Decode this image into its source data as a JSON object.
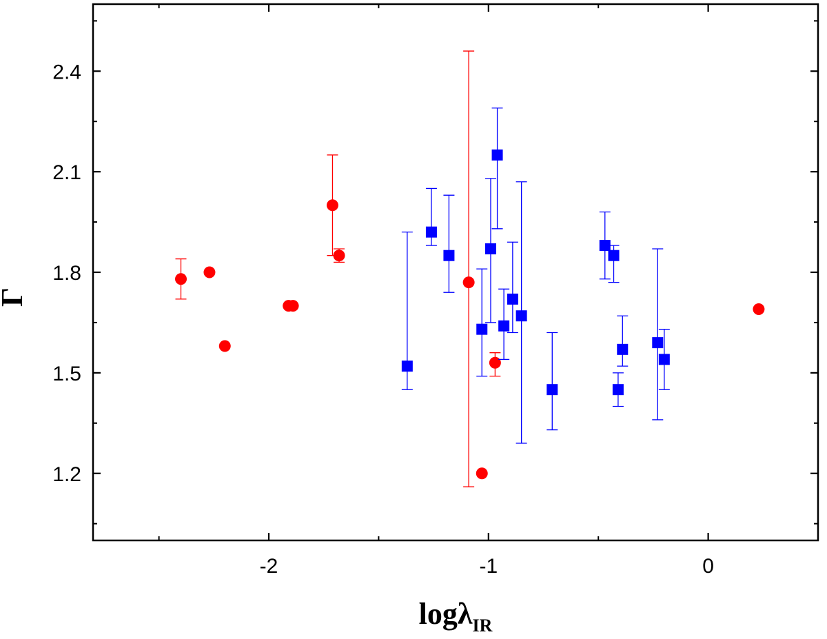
{
  "chart_data": {
    "type": "scatter",
    "title": "",
    "xlabel": {
      "main": "logλ",
      "sub": "IR"
    },
    "ylabel": "Γ",
    "xlim": [
      -2.8,
      0.5
    ],
    "ylim": [
      1.0,
      2.6
    ],
    "x_major_ticks": [
      -2,
      -1,
      0
    ],
    "x_tick_labels": [
      "-2",
      "-1",
      "0"
    ],
    "x_minor_ticks": [
      -2.5,
      -1.5,
      -0.5
    ],
    "y_major_ticks": [
      1.2,
      1.5,
      1.8,
      2.1,
      2.4
    ],
    "y_tick_labels": [
      "1.2",
      "1.5",
      "1.8",
      "2.1",
      "2.4"
    ],
    "y_minor_ticks": [
      1.05,
      1.35,
      1.65,
      1.95,
      2.25,
      2.55
    ],
    "grid": false,
    "series": [
      {
        "name": "circles",
        "marker": "circle",
        "color": "#ff0000",
        "points": [
          {
            "x": -2.4,
            "y": 1.78,
            "lo": 1.72,
            "hi": 1.84
          },
          {
            "x": -2.27,
            "y": 1.8
          },
          {
            "x": -2.2,
            "y": 1.58
          },
          {
            "x": -1.91,
            "y": 1.7
          },
          {
            "x": -1.89,
            "y": 1.7
          },
          {
            "x": -1.71,
            "y": 2.0,
            "lo": 1.85,
            "hi": 2.15
          },
          {
            "x": -1.68,
            "y": 1.85,
            "lo": 1.83,
            "hi": 1.87
          },
          {
            "x": -1.09,
            "y": 1.77,
            "lo": 1.16,
            "hi": 2.46
          },
          {
            "x": -1.03,
            "y": 1.2
          },
          {
            "x": -0.97,
            "y": 1.53,
            "lo": 1.49,
            "hi": 1.56
          },
          {
            "x": 0.23,
            "y": 1.69
          }
        ]
      },
      {
        "name": "squares",
        "marker": "square",
        "color": "#0000ff",
        "points": [
          {
            "x": -1.37,
            "y": 1.52,
            "lo": 1.45,
            "hi": 1.92
          },
          {
            "x": -1.26,
            "y": 1.92,
            "lo": 1.88,
            "hi": 2.05
          },
          {
            "x": -1.18,
            "y": 1.85,
            "lo": 1.74,
            "hi": 2.03
          },
          {
            "x": -1.03,
            "y": 1.63,
            "lo": 1.49,
            "hi": 1.81
          },
          {
            "x": -0.99,
            "y": 1.87,
            "lo": 1.65,
            "hi": 2.08
          },
          {
            "x": -0.96,
            "y": 2.15,
            "lo": 1.93,
            "hi": 2.29
          },
          {
            "x": -0.93,
            "y": 1.64,
            "lo": 1.54,
            "hi": 1.75
          },
          {
            "x": -0.89,
            "y": 1.72,
            "lo": 1.62,
            "hi": 1.89
          },
          {
            "x": -0.85,
            "y": 1.67,
            "lo": 1.29,
            "hi": 2.07
          },
          {
            "x": -0.71,
            "y": 1.45,
            "lo": 1.33,
            "hi": 1.62
          },
          {
            "x": -0.47,
            "y": 1.88,
            "lo": 1.78,
            "hi": 1.98
          },
          {
            "x": -0.43,
            "y": 1.85,
            "lo": 1.77,
            "hi": 1.88
          },
          {
            "x": -0.41,
            "y": 1.45,
            "lo": 1.4,
            "hi": 1.5
          },
          {
            "x": -0.39,
            "y": 1.57,
            "lo": 1.52,
            "hi": 1.67
          },
          {
            "x": -0.23,
            "y": 1.59,
            "lo": 1.36,
            "hi": 1.87
          },
          {
            "x": -0.2,
            "y": 1.54,
            "lo": 1.45,
            "hi": 1.63
          }
        ]
      }
    ]
  }
}
